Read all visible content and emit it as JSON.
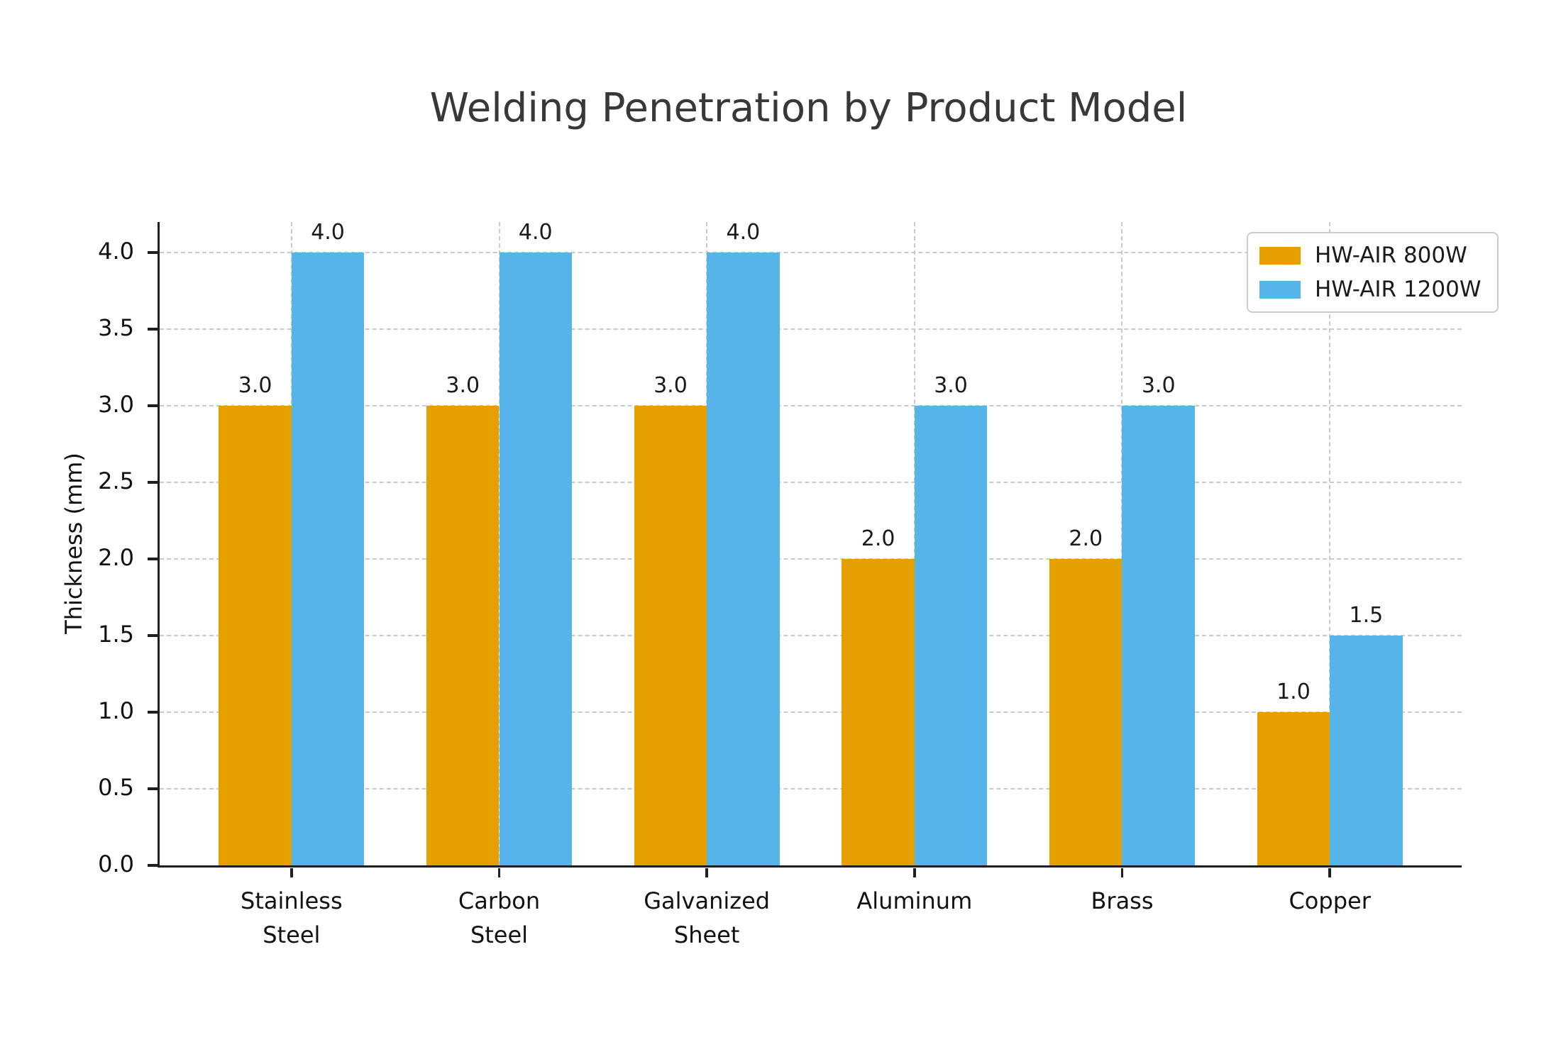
{
  "chart_data": {
    "type": "bar",
    "title": "Welding Penetration by Product Model",
    "categories": [
      "Stainless\nSteel",
      "Carbon\nSteel",
      "Galvanized\nSheet",
      "Aluminum",
      "Brass",
      "Copper"
    ],
    "series": [
      {
        "name": "HW-AIR 800W",
        "color": "#E69F00",
        "values": [
          3.0,
          3.0,
          3.0,
          2.0,
          2.0,
          1.0
        ]
      },
      {
        "name": "HW-AIR 1200W",
        "color": "#56B4E9",
        "values": [
          4.0,
          4.0,
          4.0,
          3.0,
          3.0,
          1.5
        ]
      }
    ],
    "xlabel": "",
    "ylabel": "Thickness (mm)",
    "ylim": [
      0,
      4.2
    ],
    "yticks": [
      "0.0",
      "0.5",
      "1.0",
      "1.5",
      "2.0",
      "2.5",
      "3.0",
      "3.5",
      "4.0"
    ],
    "grid": true,
    "grid_style": "dashed",
    "legend_position": "upper right",
    "value_label_decimals": 1
  },
  "colors": {
    "background": "#ffffff",
    "axis": "#1f1f1f",
    "grid": "#c9c9c9",
    "title_text": "#383838",
    "tick_text": "#111111",
    "series_800w": "#E69F00",
    "series_1200w": "#56B4E9",
    "legend_border": "#cccccc"
  }
}
